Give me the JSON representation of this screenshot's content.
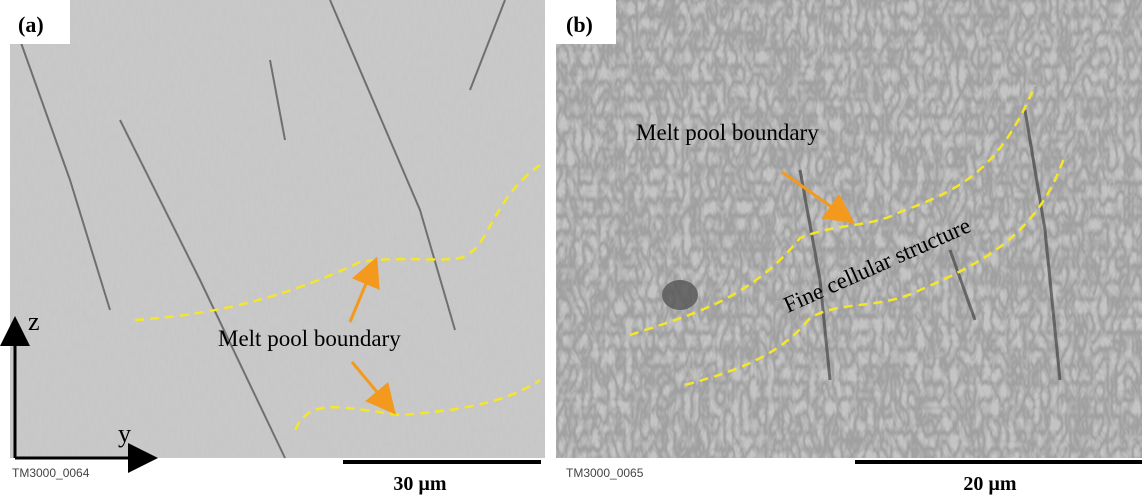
{
  "panels": [
    {
      "label": "(a)",
      "annotation": "Melt pool boundary",
      "image_code": "TM3000_0064",
      "scale": "30 µm",
      "axis_z": "z",
      "axis_y": "y"
    },
    {
      "label": "(b)",
      "annotation": "Melt pool boundary",
      "structure": "Fine cellular structure",
      "image_code": "TM3000_0065",
      "scale": "20 µm"
    }
  ]
}
